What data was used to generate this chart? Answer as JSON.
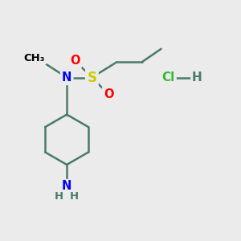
{
  "bg_color": "#ebebeb",
  "bond_color": "#4a7a6a",
  "bond_width": 1.8,
  "atom_colors": {
    "S": "#cccc00",
    "O": "#ff0000",
    "N": "#0000ff",
    "C": "#000000",
    "Cl": "#33bb33",
    "H": "#4a7a6a"
  },
  "font_size": 10.5
}
